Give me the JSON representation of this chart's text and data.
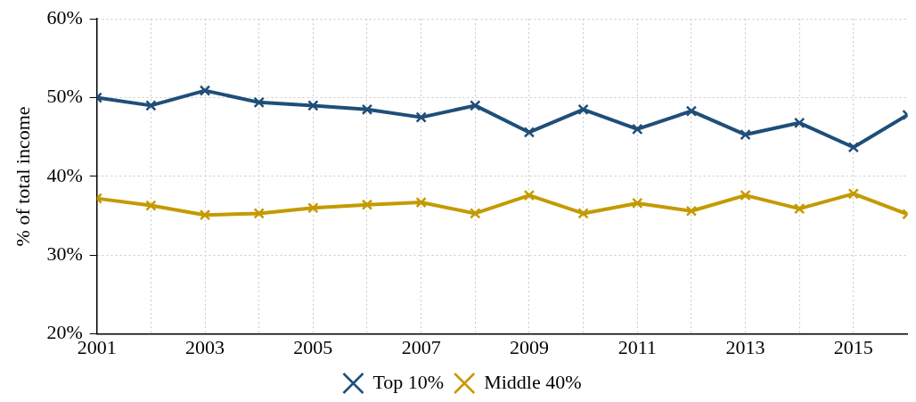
{
  "chart_data": {
    "type": "line",
    "ylabel": "% of total income",
    "x": [
      2001,
      2002,
      2003,
      2004,
      2005,
      2006,
      2007,
      2008,
      2009,
      2010,
      2011,
      2012,
      2013,
      2014,
      2015,
      2016
    ],
    "series": [
      {
        "name": "Top 10%",
        "color": "#1f4e79",
        "values": [
          50.0,
          49.0,
          50.9,
          49.4,
          49.0,
          48.5,
          47.5,
          49.0,
          45.6,
          48.5,
          46.0,
          48.3,
          45.3,
          46.8,
          43.7,
          47.8
        ]
      },
      {
        "name": "Middle 40%",
        "color": "#c49a00",
        "values": [
          37.2,
          36.3,
          35.1,
          35.3,
          36.0,
          36.4,
          36.7,
          35.3,
          37.6,
          35.3,
          36.6,
          35.6,
          37.6,
          35.9,
          37.8,
          35.2
        ]
      }
    ],
    "xlim": [
      2001,
      2016
    ],
    "xticks": [
      2001,
      {
        "value": 2002,
        "label": null
      },
      2003,
      {
        "value": 2004,
        "label": null
      },
      2005,
      {
        "value": 2006,
        "label": null
      },
      2007,
      {
        "value": 2008,
        "label": null
      },
      2009,
      {
        "value": 2010,
        "label": null
      },
      2011,
      {
        "value": 2012,
        "label": null
      },
      2013,
      {
        "value": 2014,
        "label": null
      },
      2015
    ],
    "ylim": [
      20,
      60
    ],
    "yticks": [
      {
        "value": 20,
        "label": "20%"
      },
      {
        "value": 30,
        "label": "30%"
      },
      {
        "value": 40,
        "label": "40%"
      },
      {
        "value": 50,
        "label": "50%"
      },
      {
        "value": 60,
        "label": "60%"
      }
    ],
    "grid": true,
    "legend": "bottom",
    "marker": "cross",
    "line_style": "solid"
  }
}
